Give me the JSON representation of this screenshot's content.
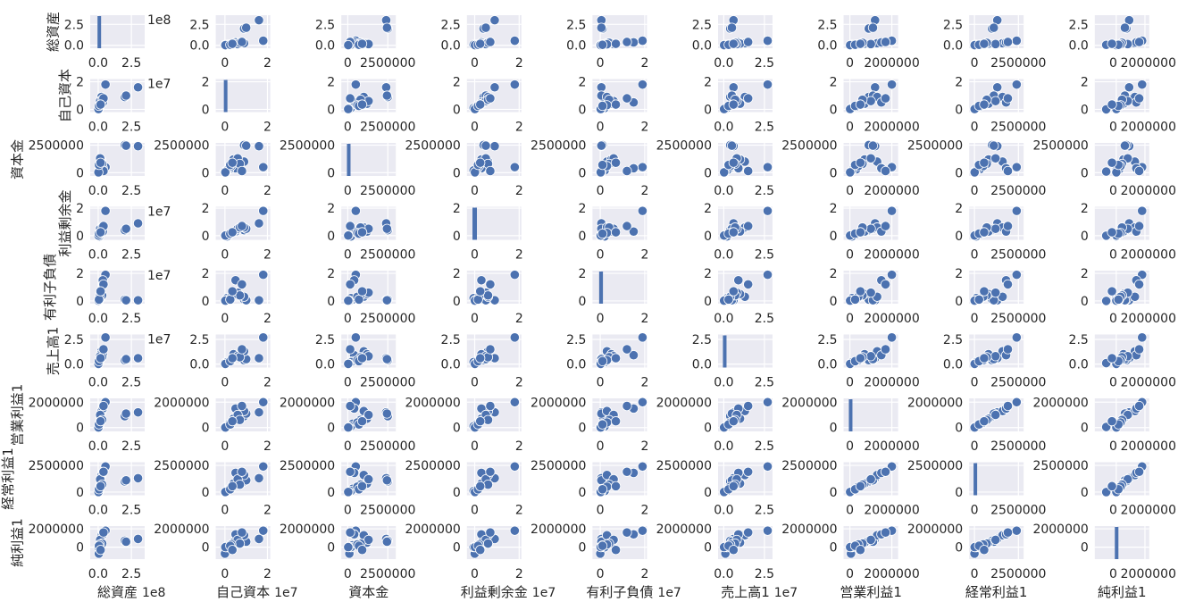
{
  "chart_data": {
    "type": "scatter",
    "title": "",
    "kind": "pairplot",
    "style": {
      "point_color": "#4c72b0",
      "panel_bg": "#eaeaf2",
      "grid_color": "#ffffff"
    },
    "grid": true,
    "variables": [
      {
        "name": "総資産",
        "ticks": [
          0,
          2.5
        ],
        "tick_labels": [
          "0.0",
          "2.5"
        ],
        "offset": "1e8",
        "xlim": [
          -0.6,
          3.5
        ],
        "ylim": [
          -0.35,
          3.6
        ],
        "hist_bin": [
          -0.05,
          0.2
        ]
      },
      {
        "name": "自己資本",
        "ticks": [
          0,
          2
        ],
        "tick_labels": [
          "0",
          "2"
        ],
        "offset": "1e7",
        "xlim": [
          -0.43,
          2.13
        ],
        "ylim": [
          -0.2,
          2.2
        ],
        "hist_bin": [
          -0.05,
          0.1
        ]
      },
      {
        "name": "資本金",
        "ticks": [
          0,
          2500000
        ],
        "tick_labels": [
          "0",
          "2500000"
        ],
        "offset": "",
        "xlim": [
          -400000,
          3000000
        ],
        "ylim": [
          -300000,
          2700000
        ],
        "hist_bin": [
          -50000,
          150000
        ]
      },
      {
        "name": "利益剰余金",
        "ticks": [
          0,
          2
        ],
        "tick_labels": [
          "0",
          "2"
        ],
        "offset": "1e7",
        "xlim": [
          -0.35,
          2.1
        ],
        "ylim": [
          -0.3,
          2.1
        ],
        "hist_bin": [
          -0.1,
          0.1
        ]
      },
      {
        "name": "有利子負債",
        "ticks": [
          0,
          2
        ],
        "tick_labels": [
          "0",
          "2"
        ],
        "offset": "1e7",
        "xlim": [
          -0.35,
          2.1
        ],
        "ylim": [
          -0.2,
          2.2
        ],
        "hist_bin": [
          -0.05,
          0.12
        ]
      },
      {
        "name": "売上高1",
        "ticks": [
          0,
          2.5
        ],
        "tick_labels": [
          "0.0",
          "2.5"
        ],
        "offset": "1e7",
        "xlim": [
          -0.35,
          3.0
        ],
        "ylim": [
          -0.35,
          3.0
        ],
        "hist_bin": [
          -0.05,
          0.15
        ]
      },
      {
        "name": "営業利益1",
        "ticks": [
          0,
          2000000
        ],
        "tick_labels": [
          "0",
          "2000000"
        ],
        "offset": "",
        "xlim": [
          -300000,
          2300000
        ],
        "ylim": [
          -300000,
          2300000
        ],
        "hist_bin": [
          -50000,
          120000
        ]
      },
      {
        "name": "経常利益1",
        "ticks": [
          0,
          2500000
        ],
        "tick_labels": [
          "0",
          "2500000"
        ],
        "offset": "",
        "xlim": [
          -300000,
          2800000
        ],
        "ylim": [
          -300000,
          2800000
        ],
        "hist_bin": [
          -50000,
          150000
        ]
      },
      {
        "name": "純利益1",
        "ticks": [
          0,
          2000000
        ],
        "tick_labels": [
          "0",
          "2000000"
        ],
        "offset": "",
        "xlim": [
          -1500000,
          2300000
        ],
        "ylim": [
          -1300000,
          2300000
        ],
        "hist_bin": [
          -100000,
          100000
        ]
      }
    ],
    "rows": [
      [
        3.0,
        1.6,
        2400000,
        0.9,
        0.05,
        0.6,
        1200000,
        1300000,
        900000
      ],
      [
        2.0,
        0.9,
        2500000,
        0.4,
        0.1,
        0.4,
        900000,
        1000000,
        700000
      ],
      [
        2.1,
        1.0,
        2450000,
        0.5,
        0.05,
        0.5,
        1100000,
        1100000,
        600000
      ],
      [
        0.55,
        1.8,
        500000,
        1.8,
        1.9,
        2.7,
        2000000,
        2400000,
        1800000
      ],
      [
        0.25,
        0.9,
        1000000,
        0.6,
        0.3,
        1.3,
        1300000,
        1600000,
        1300000
      ],
      [
        0.35,
        0.5,
        400000,
        0.3,
        1.5,
        0.9,
        1500000,
        1800000,
        1400000
      ],
      [
        0.2,
        0.4,
        1200000,
        0.3,
        0.5,
        1.0,
        700000,
        800000,
        500000
      ],
      [
        0.1,
        0.2,
        300000,
        0.1,
        0.1,
        0.3,
        300000,
        300000,
        200000
      ],
      [
        0.05,
        0.0,
        100000,
        0.0,
        0.0,
        0.1,
        50000,
        0,
        -700000
      ],
      [
        0.15,
        0.6,
        1300000,
        0.5,
        0.6,
        0.8,
        1000000,
        1200000,
        800000
      ],
      [
        0.08,
        0.1,
        200000,
        -0.05,
        0.2,
        0.2,
        100000,
        100000,
        0
      ],
      [
        0.03,
        0.05,
        50000,
        0.02,
        0.05,
        0.05,
        20000,
        20000,
        10000
      ],
      [
        0.3,
        0.7,
        800000,
        0.6,
        0.4,
        0.7,
        600000,
        700000,
        400000
      ],
      [
        0.12,
        0.3,
        600000,
        0.2,
        0.3,
        0.4,
        400000,
        500000,
        300000
      ],
      [
        0.4,
        0.8,
        150000,
        0.7,
        1.2,
        1.5,
        1700000,
        1900000,
        1600000
      ],
      [
        0.02,
        0.02,
        30000,
        0.01,
        0.02,
        0.02,
        10000,
        10000,
        5000
      ],
      [
        0.06,
        0.25,
        700000,
        0.15,
        0.1,
        0.3,
        250000,
        260000,
        150000
      ],
      [
        0.18,
        0.35,
        900000,
        0.25,
        0.7,
        0.6,
        500000,
        550000,
        -300000
      ]
    ]
  }
}
